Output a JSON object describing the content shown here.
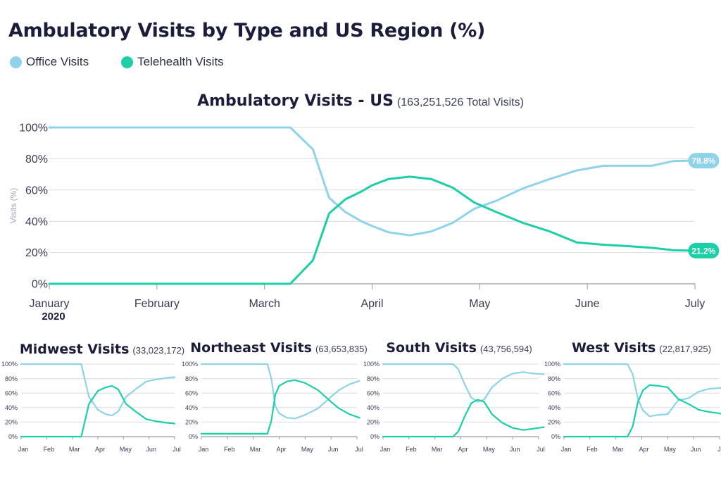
{
  "page": {
    "title": "Ambulatory Visits by Type and US Region (%)",
    "legend": [
      {
        "label": "Office Visits",
        "color": "#8fd3ea"
      },
      {
        "label": "Telehealth Visits",
        "color": "#1ccfa6"
      }
    ]
  },
  "chart_data": [
    {
      "type": "line",
      "title": "Ambulatory Visits - US",
      "subtitle": "(163,251,526 Total Visits)",
      "ylabel": "Visits (%)",
      "xlabel": "",
      "ylim": [
        0,
        100
      ],
      "yticks": [
        "100%",
        "80%",
        "60%",
        "40%",
        "20%",
        "0%"
      ],
      "xticks": [
        "January",
        "February",
        "March",
        "April",
        "May",
        "June",
        "July"
      ],
      "xtick_sublabel": "2020",
      "grid": true,
      "series": [
        {
          "name": "Office Visits",
          "color": "#8fd3ea",
          "end_label": "78.8%",
          "x": [
            0,
            0.25,
            0.5,
            1,
            1.5,
            2,
            2.24,
            2.45,
            2.6,
            2.75,
            2.9,
            3,
            3.15,
            3.35,
            3.55,
            3.75,
            3.95,
            4.15,
            4.4,
            4.65,
            4.9,
            5.15,
            5.4,
            5.6,
            5.8,
            5.95
          ],
          "values": [
            100,
            100,
            100,
            100,
            100,
            100,
            100,
            86,
            55,
            46,
            40,
            37,
            33,
            31,
            33.5,
            39,
            48,
            53,
            61,
            67,
            72.5,
            75.5,
            75.5,
            75.5,
            78.5,
            78.8
          ]
        },
        {
          "name": "Telehealth Visits",
          "color": "#1ccfa6",
          "end_label": "21.2%",
          "x": [
            0,
            0.25,
            0.5,
            1,
            1.5,
            2,
            2.24,
            2.45,
            2.6,
            2.75,
            2.9,
            3,
            3.15,
            3.35,
            3.55,
            3.75,
            3.95,
            4.15,
            4.4,
            4.65,
            4.9,
            5.15,
            5.4,
            5.6,
            5.8,
            5.95
          ],
          "values": [
            0,
            0,
            0,
            0,
            0,
            0,
            0,
            15,
            45,
            54,
            59,
            63,
            67,
            68.5,
            67,
            61.5,
            52,
            46,
            39,
            33.5,
            26.5,
            25,
            24,
            23,
            21.5,
            21.2
          ]
        }
      ]
    },
    {
      "type": "line",
      "title": "Midwest Visits",
      "subtitle": "(33,023,172)",
      "ylim": [
        0,
        100
      ],
      "yticks": [
        "100%",
        "80%",
        "60%",
        "40%",
        "20%",
        "0%"
      ],
      "xticks": [
        "Jan",
        "Feb",
        "Mar",
        "Apr",
        "May",
        "Jun",
        "Jul"
      ],
      "series": [
        {
          "name": "Office Visits",
          "color": "#8fd3ea",
          "x": [
            0,
            1,
            2,
            2.35,
            2.65,
            3,
            3.3,
            3.55,
            3.8,
            4.1,
            4.5,
            4.9,
            5.3,
            5.7,
            6.0
          ],
          "values": [
            100,
            100,
            100,
            100,
            55,
            37,
            31,
            29,
            35,
            55,
            66,
            76,
            79,
            81,
            82
          ]
        },
        {
          "name": "Telehealth Visits",
          "color": "#1ccfa6",
          "x": [
            0,
            1,
            2,
            2.35,
            2.65,
            3,
            3.3,
            3.55,
            3.8,
            4.1,
            4.5,
            4.9,
            5.3,
            5.7,
            6.0
          ],
          "values": [
            0,
            0,
            0,
            0,
            45,
            63,
            68,
            70,
            65,
            45,
            34,
            24,
            21,
            19,
            18
          ]
        }
      ]
    },
    {
      "type": "line",
      "title": "Northeast Visits",
      "subtitle": "(63,653,835)",
      "ylim": [
        0,
        100
      ],
      "yticks": [
        "100%",
        "80%",
        "60%",
        "40%",
        "20%",
        "0%"
      ],
      "xticks": [
        "Jan",
        "Feb",
        "Mar",
        "Apr",
        "May",
        "Jun",
        "Jul"
      ],
      "series": [
        {
          "name": "Office Visits",
          "color": "#8fd3ea",
          "x": [
            0,
            1,
            2,
            2.55,
            2.7,
            2.85,
            3,
            3.3,
            3.6,
            4.0,
            4.5,
            5.0,
            5.3,
            5.7,
            6.1
          ],
          "values": [
            100,
            100,
            100,
            100,
            80,
            42,
            32,
            26,
            25,
            30,
            39,
            55,
            64,
            72,
            77
          ]
        },
        {
          "name": "Telehealth Visits",
          "color": "#1ccfa6",
          "x": [
            0,
            1,
            2,
            2.55,
            2.7,
            2.85,
            3,
            3.3,
            3.6,
            4.0,
            4.5,
            5.0,
            5.3,
            5.7,
            6.1
          ],
          "values": [
            4,
            4,
            4,
            4,
            22,
            58,
            70,
            76,
            78,
            74,
            64,
            48,
            39,
            31,
            26
          ]
        }
      ]
    },
    {
      "type": "line",
      "title": "South Visits",
      "subtitle": "(43,756,594)",
      "ylim": [
        0,
        100
      ],
      "yticks": [
        "100%",
        "80%",
        "60%",
        "40%",
        "20%",
        "0%"
      ],
      "xticks": [
        "Jan",
        "Feb",
        "Mar",
        "Apr",
        "May",
        "Jun",
        "Jul"
      ],
      "series": [
        {
          "name": "Office Visits",
          "color": "#8fd3ea",
          "x": [
            0,
            1,
            2,
            2.7,
            2.9,
            3.15,
            3.4,
            3.65,
            3.9,
            4.2,
            4.6,
            5.0,
            5.4,
            5.8,
            6.2
          ],
          "values": [
            100,
            100,
            100,
            100,
            93,
            72,
            54,
            48,
            51,
            68,
            80,
            87,
            89,
            87,
            86
          ]
        },
        {
          "name": "Telehealth Visits",
          "color": "#1ccfa6",
          "x": [
            0,
            1,
            2,
            2.7,
            2.9,
            3.15,
            3.4,
            3.65,
            3.9,
            4.2,
            4.6,
            5.0,
            5.4,
            5.8,
            6.2
          ],
          "values": [
            0,
            0,
            0,
            0,
            7,
            28,
            46,
            51,
            48,
            31,
            19,
            12,
            9,
            11,
            13
          ]
        }
      ]
    },
    {
      "type": "line",
      "title": "West Visits",
      "subtitle": "(22,817,925)",
      "ylim": [
        0,
        100
      ],
      "yticks": [
        "100%",
        "80%",
        "60%",
        "40%",
        "20%",
        "0%"
      ],
      "xticks": [
        "Jan",
        "Feb",
        "Mar",
        "Apr",
        "May",
        "Jun",
        "Jul"
      ],
      "series": [
        {
          "name": "Office Visits",
          "color": "#8fd3ea",
          "x": [
            0,
            1,
            2,
            2.45,
            2.65,
            2.85,
            3.05,
            3.3,
            3.65,
            4.0,
            4.4,
            4.8,
            5.2,
            5.6,
            6.0,
            6.3
          ],
          "values": [
            100,
            100,
            100,
            100,
            86,
            52,
            36,
            28,
            30,
            31,
            50,
            53,
            62,
            66,
            67,
            69
          ]
        },
        {
          "name": "Telehealth Visits",
          "color": "#1ccfa6",
          "x": [
            0,
            1,
            2,
            2.45,
            2.65,
            2.85,
            3.05,
            3.3,
            3.65,
            4.0,
            4.4,
            4.8,
            5.2,
            5.6,
            6.0,
            6.3
          ],
          "values": [
            0,
            0,
            0,
            0,
            14,
            48,
            64,
            71,
            70,
            68,
            52,
            45,
            37,
            34,
            32,
            30
          ]
        }
      ]
    }
  ]
}
